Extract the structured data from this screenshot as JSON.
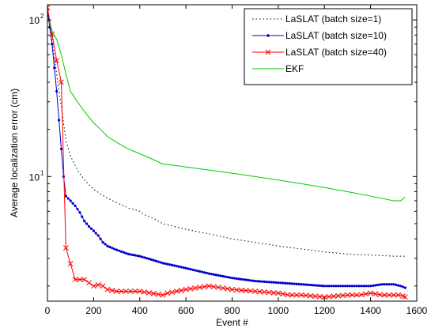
{
  "chart_data": {
    "type": "line",
    "title": "",
    "xlabel": "Event #",
    "ylabel": "Average localization error (cm)",
    "xlim": [
      0,
      1600
    ],
    "ylim": [
      1.6,
      125
    ],
    "yscale": "log",
    "grid": false,
    "legend_position": "top-right",
    "xticks": [
      0,
      200,
      400,
      600,
      800,
      1000,
      1200,
      1400,
      1600
    ],
    "xtick_labels": [
      "0",
      "200",
      "400",
      "600",
      "800",
      "1000",
      "1200",
      "1400",
      "1600"
    ],
    "ytick_labels": [
      {
        "value": 10,
        "base": "10",
        "exp": "1"
      },
      {
        "value": 100,
        "base": "10",
        "exp": "2"
      }
    ],
    "series": [
      {
        "name": "LaSLAT (batch size=1)",
        "color": "#000000",
        "style": "dotted",
        "marker": "none",
        "x": [
          0,
          20,
          40,
          60,
          80,
          100,
          130,
          160,
          200,
          250,
          300,
          350,
          400,
          420,
          460,
          500,
          550,
          600,
          700,
          800,
          900,
          1000,
          1100,
          1200,
          1300,
          1400,
          1500,
          1550
        ],
        "y": [
          120,
          75,
          45,
          28,
          17,
          13.5,
          11,
          9.5,
          8.3,
          7.4,
          6.8,
          6.3,
          6.0,
          5.7,
          5.4,
          5.0,
          4.8,
          4.6,
          4.3,
          4.0,
          3.8,
          3.6,
          3.45,
          3.3,
          3.2,
          3.15,
          3.1,
          3.1
        ]
      },
      {
        "name": "LaSLAT (batch size=10)",
        "color": "#0000cc",
        "style": "solid",
        "marker": "dot",
        "x": [
          0,
          20,
          40,
          60,
          70,
          80,
          100,
          120,
          140,
          160,
          180,
          200,
          220,
          240,
          260,
          300,
          350,
          400,
          450,
          500,
          550,
          600,
          700,
          800,
          900,
          1000,
          1100,
          1200,
          1300,
          1400,
          1450,
          1500,
          1530,
          1550
        ],
        "y": [
          115,
          70,
          35,
          15,
          10,
          7.5,
          7.0,
          6.5,
          5.9,
          5.2,
          4.8,
          4.5,
          4.2,
          3.8,
          3.6,
          3.4,
          3.2,
          3.1,
          2.95,
          2.8,
          2.7,
          2.6,
          2.4,
          2.25,
          2.15,
          2.1,
          2.05,
          2.0,
          2.0,
          2.0,
          2.05,
          2.05,
          2.0,
          1.95
        ]
      },
      {
        "name": "LaSLAT (batch size=40)",
        "color": "#ff0000",
        "style": "solid",
        "marker": "x",
        "x": [
          0,
          40,
          60,
          80,
          120,
          160,
          200,
          230,
          260,
          300,
          350,
          400,
          450,
          500,
          520,
          560,
          600,
          650,
          700,
          750,
          800,
          900,
          1000,
          1050,
          1100,
          1200,
          1300,
          1350,
          1400,
          1450,
          1500,
          1530,
          1550
        ],
        "y": [
          120,
          55,
          40,
          3.5,
          2.2,
          2.2,
          2.0,
          2.05,
          1.9,
          1.85,
          1.85,
          1.85,
          1.8,
          1.75,
          1.8,
          1.85,
          1.9,
          1.95,
          2.0,
          1.95,
          1.9,
          1.85,
          1.8,
          1.75,
          1.75,
          1.7,
          1.75,
          1.75,
          1.8,
          1.75,
          1.75,
          1.75,
          1.7
        ]
      },
      {
        "name": "EKF",
        "color": "#00cc00",
        "style": "solid",
        "marker": "none",
        "x": [
          0,
          10,
          20,
          40,
          60,
          80,
          100,
          130,
          160,
          200,
          230,
          260,
          300,
          350,
          400,
          450,
          500,
          550,
          600,
          700,
          800,
          900,
          1000,
          1100,
          1200,
          1300,
          1400,
          1500,
          1530,
          1550
        ],
        "y": [
          100,
          95,
          85,
          75,
          60,
          45,
          35,
          30,
          26,
          22,
          20,
          18,
          16.5,
          15,
          14,
          13,
          12,
          11.8,
          11.5,
          11,
          10.5,
          10,
          9.5,
          9.0,
          8.5,
          8.0,
          7.5,
          7.0,
          7.0,
          7.4
        ]
      }
    ]
  }
}
